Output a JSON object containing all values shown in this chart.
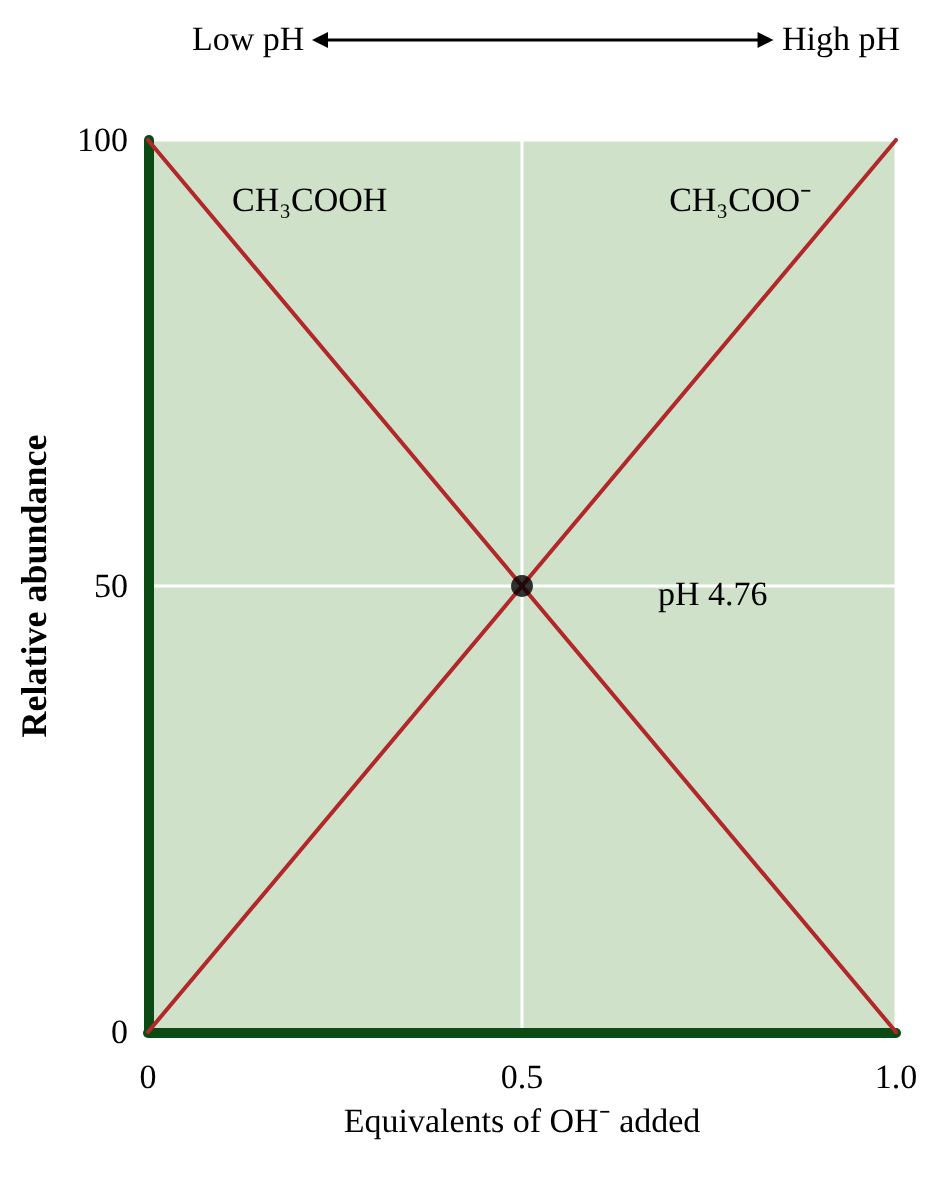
{
  "chart_data": {
    "type": "line",
    "xlabel": "Equivalents of OH⁻ added",
    "ylabel": "Relative abundance",
    "x": [
      0,
      1
    ],
    "series": [
      {
        "name": "CH₃COOH",
        "color": "#b2282a",
        "values": [
          100,
          0
        ]
      },
      {
        "name": "CH₃COO⁻",
        "color": "#b2282a",
        "values": [
          0,
          100
        ]
      },
      {
        "type": "scatter",
        "color": "#000000",
        "x": [
          0.5
        ],
        "values": [
          50
        ],
        "marker": "circle"
      }
    ],
    "xlim": [
      0,
      1
    ],
    "xticks": [
      0,
      0.5,
      {
        "value": 1,
        "label": "1.0"
      }
    ],
    "ylim": [
      0,
      100
    ],
    "yticks": [
      0,
      50,
      100
    ],
    "grid": true,
    "marker": "none",
    "line_style": "solid",
    "annotations": [
      "pH 4.76",
      "Low pH",
      "High pH"
    ]
  }
}
